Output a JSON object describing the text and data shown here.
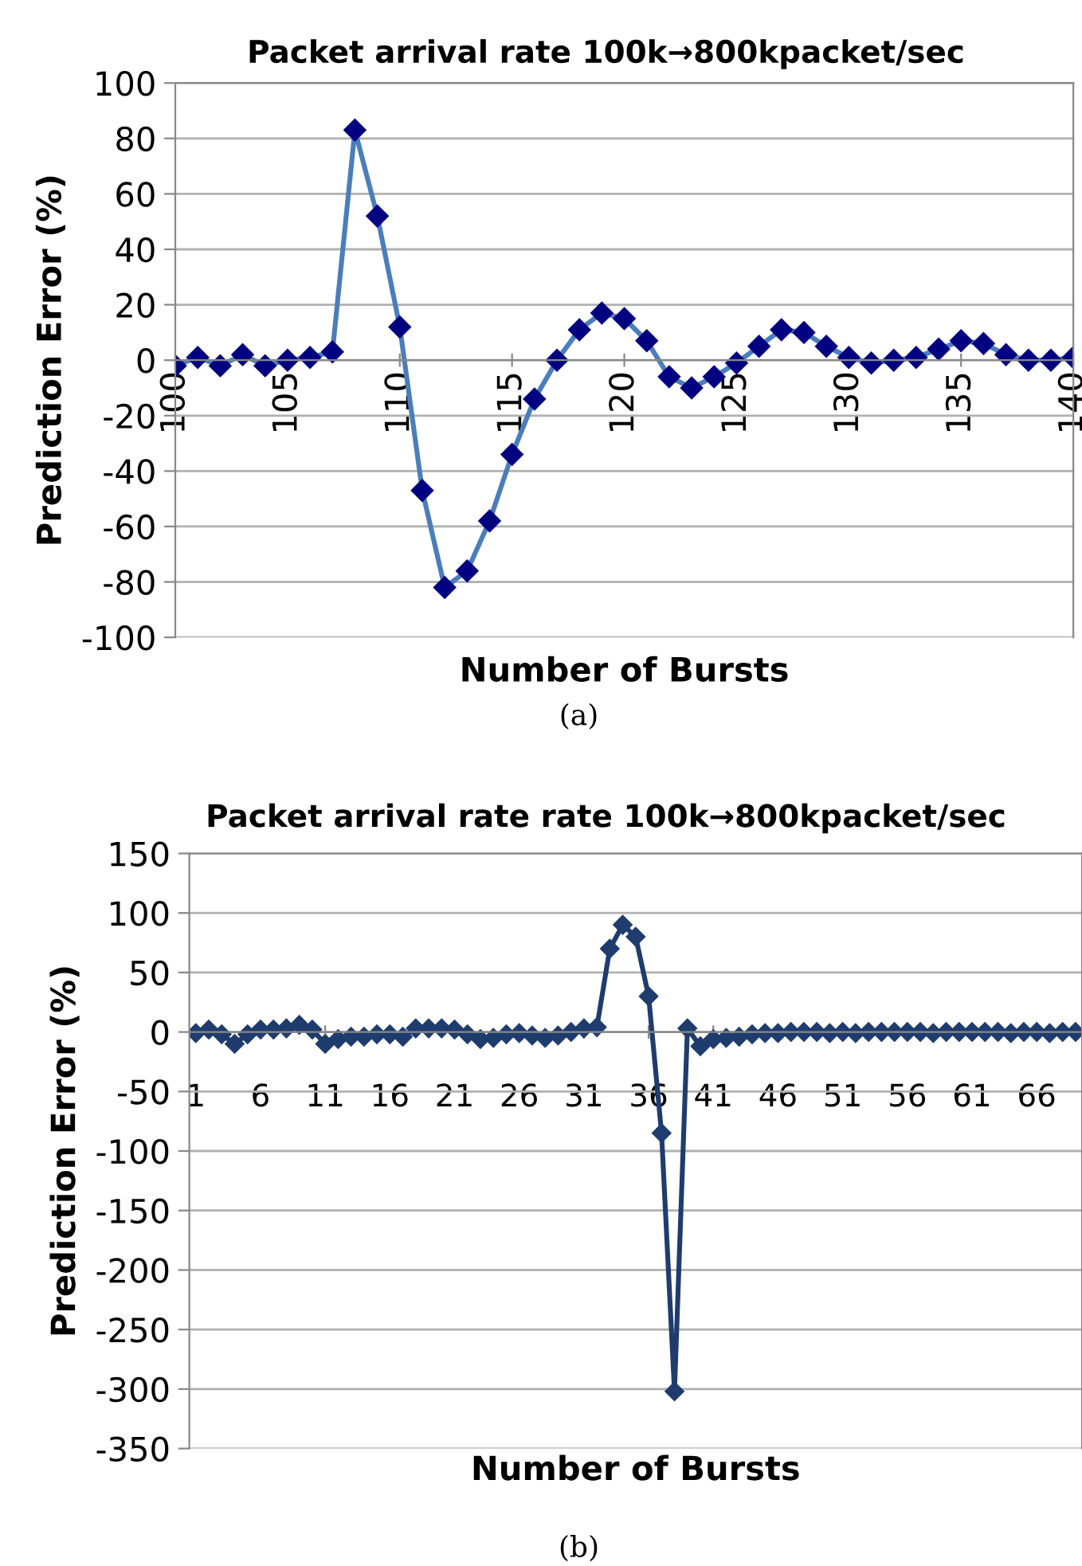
{
  "chart_data": [
    {
      "type": "line",
      "title": "Packet arrival rate 100k→800kpacket/sec",
      "xlabel": "Number of Bursts",
      "ylabel": "Prediction Error (%)",
      "annotations": [
        "(a)"
      ],
      "x": [
        100,
        101,
        102,
        103,
        104,
        105,
        106,
        107,
        108,
        109,
        110,
        111,
        112,
        113,
        114,
        115,
        116,
        117,
        118,
        119,
        120,
        121,
        122,
        123,
        124,
        125,
        126,
        127,
        128,
        129,
        130,
        131,
        132,
        133,
        134,
        135,
        136,
        137,
        138,
        139,
        140
      ],
      "series": [
        {
          "color": "#4a7ebb",
          "values": [
            -2,
            1,
            -2,
            2,
            -2,
            0,
            1,
            3,
            83,
            52,
            12,
            -47,
            -82,
            -76,
            -58,
            -34,
            -14,
            0,
            11,
            17,
            15,
            7,
            -6,
            -10,
            -6,
            -1,
            5,
            11,
            10,
            5,
            1,
            -1,
            0,
            1,
            4,
            7,
            6,
            2,
            0,
            0,
            1
          ]
        }
      ],
      "xlim": [
        100,
        140
      ],
      "xticks": [
        100,
        105,
        110,
        115,
        120,
        125,
        130,
        135,
        140
      ],
      "ylim": [
        -100,
        100
      ],
      "yticks": [
        -100,
        -80,
        -60,
        -40,
        -20,
        0,
        20,
        40,
        60,
        80,
        100
      ],
      "grid": "y",
      "marker": "diamond",
      "line_style": "solid",
      "legend": false
    },
    {
      "type": "line",
      "title": "Packet arrival rate rate 100k→800kpacket/sec",
      "xlabel": "Number of Bursts",
      "ylabel": "Prediction Error (%)",
      "annotations": [
        "(b)"
      ],
      "x": [
        1,
        2,
        3,
        4,
        5,
        6,
        7,
        8,
        9,
        10,
        11,
        12,
        13,
        14,
        15,
        16,
        17,
        18,
        19,
        20,
        21,
        22,
        23,
        24,
        25,
        26,
        27,
        28,
        29,
        30,
        31,
        32,
        33,
        34,
        35,
        36,
        37,
        38,
        39,
        40,
        41,
        42,
        43,
        44,
        45,
        46,
        47,
        48,
        49,
        50,
        51,
        52,
        53,
        54,
        55,
        56,
        57,
        58,
        59,
        60,
        61,
        62,
        63,
        64,
        65,
        66,
        67,
        68,
        69
      ],
      "series": [
        {
          "color": "#1f3c6e",
          "values": [
            -1,
            2,
            -2,
            -10,
            -2,
            2,
            2,
            3,
            6,
            2,
            -10,
            -6,
            -4,
            -4,
            -2,
            -2,
            -4,
            3,
            3,
            3,
            2,
            -2,
            -6,
            -5,
            -2,
            -1,
            -3,
            -5,
            -3,
            0,
            3,
            4,
            70,
            90,
            80,
            30,
            -85,
            -302,
            3,
            -12,
            -6,
            -5,
            -4,
            -2,
            -1,
            -1,
            0,
            0,
            0,
            -1,
            0,
            -1,
            0,
            0,
            0,
            0,
            0,
            -1,
            0,
            0,
            0,
            0,
            0,
            -1,
            0,
            0,
            -1,
            0,
            0
          ]
        }
      ],
      "xlim": [
        0.5,
        69.5
      ],
      "xticks": [
        1,
        6,
        11,
        16,
        21,
        26,
        31,
        36,
        41,
        46,
        51,
        56,
        61,
        66
      ],
      "ylim": [
        -350,
        150
      ],
      "yticks": [
        -350,
        -300,
        -250,
        -200,
        -150,
        -100,
        -50,
        0,
        50,
        100,
        150
      ],
      "grid": "y",
      "marker": "diamond",
      "line_style": "solid",
      "legend": false
    }
  ]
}
